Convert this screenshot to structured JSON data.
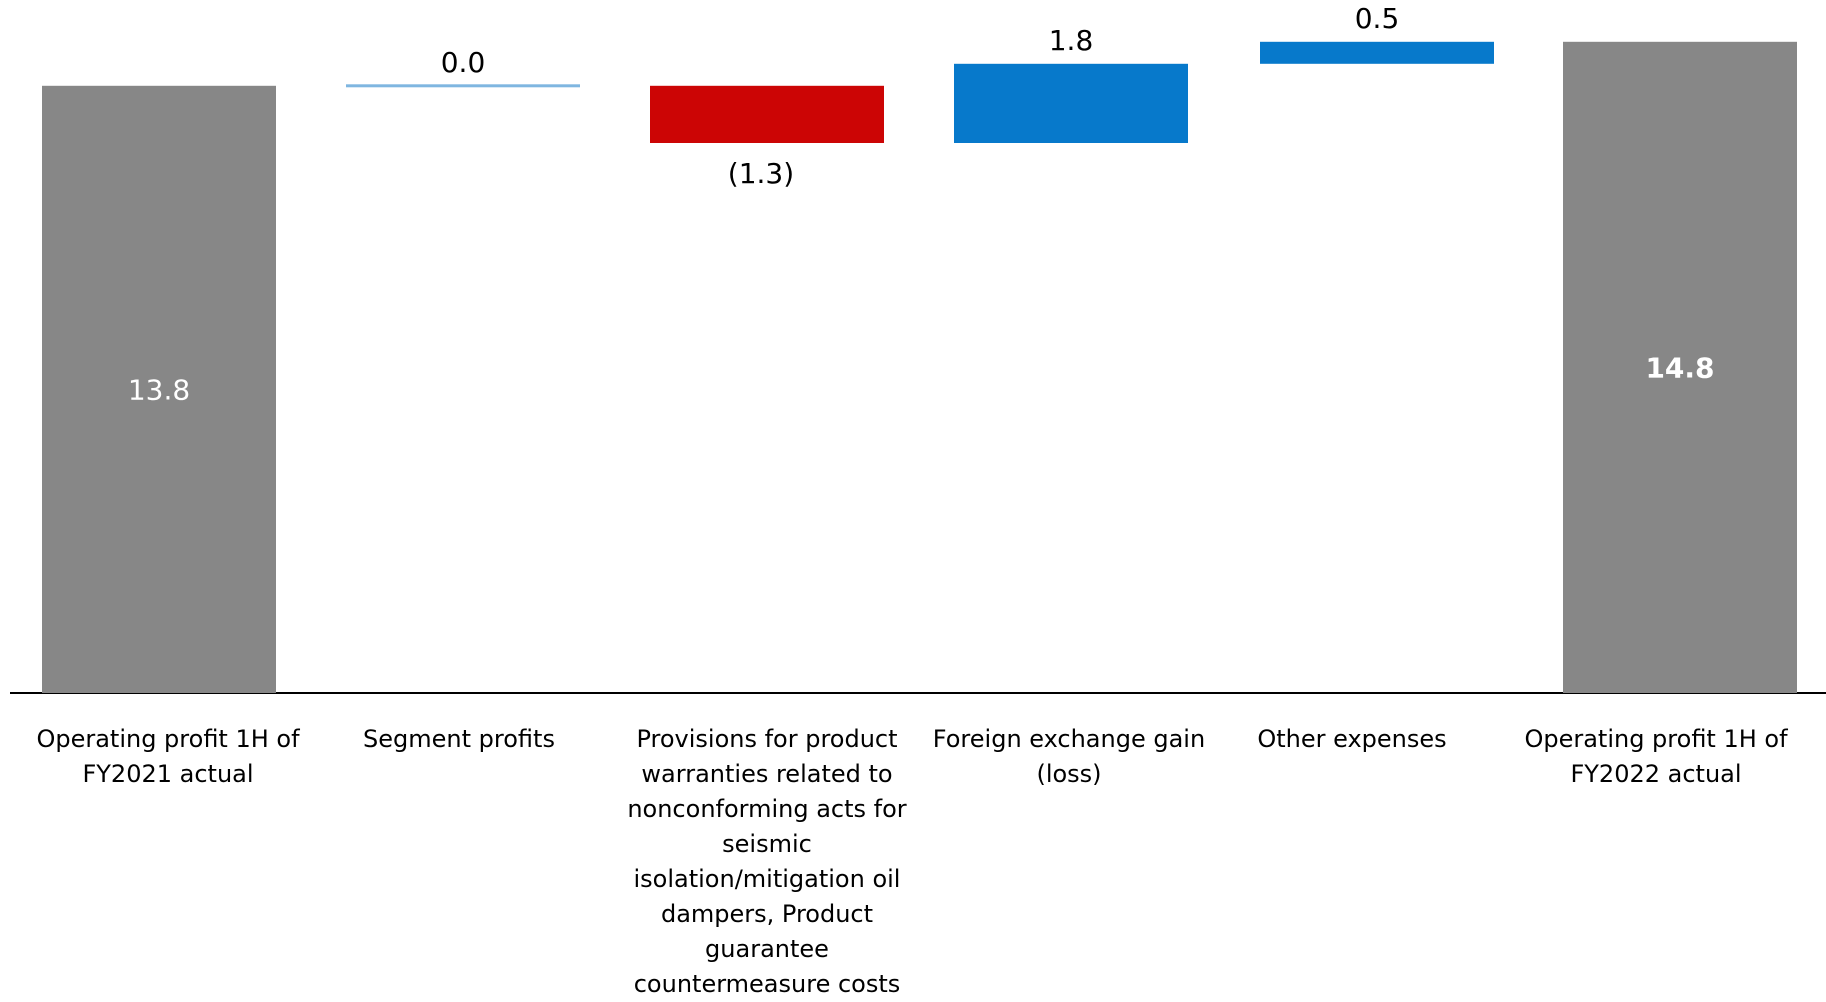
{
  "chart_data": {
    "type": "waterfall",
    "categories": [
      "Operating profit 1H of FY2021 actual",
      "Segment profits",
      "Provisions for product warranties related to nonconforming acts for seismic isolation/mitigation oil dampers, Product guarantee countermeasure costs",
      "Foreign exchange gain (loss)",
      "Other expenses",
      "Operating profit 1H of FY2022 actual"
    ],
    "items": [
      {
        "category_index": 0,
        "kind": "total",
        "value": 13.8,
        "label": "13.8",
        "color": "#878787",
        "label_color": "#ffffff",
        "label_bold": false
      },
      {
        "category_index": 1,
        "kind": "delta",
        "value": 0.0,
        "label": "0.0",
        "color": "#7fb6e0",
        "label_color": "#000000",
        "label_bold": false
      },
      {
        "category_index": 2,
        "kind": "delta",
        "value": -1.3,
        "label": "(1.3)",
        "color": "#cc0505",
        "label_color": "#000000",
        "label_bold": false
      },
      {
        "category_index": 3,
        "kind": "delta",
        "value": 1.8,
        "label": "1.8",
        "color": "#0779cb",
        "label_color": "#000000",
        "label_bold": false
      },
      {
        "category_index": 4,
        "kind": "delta",
        "value": 0.5,
        "label": "0.5",
        "color": "#0779cb",
        "label_color": "#000000",
        "label_bold": false
      },
      {
        "category_index": 5,
        "kind": "total",
        "value": 14.8,
        "label": "14.8",
        "color": "#878787",
        "label_color": "#ffffff",
        "label_bold": true
      }
    ],
    "axis_color": "#000000",
    "ylim": [
      0,
      15.5
    ],
    "grid": false,
    "legend": "none",
    "title": "",
    "xlabel": "",
    "ylabel": ""
  }
}
